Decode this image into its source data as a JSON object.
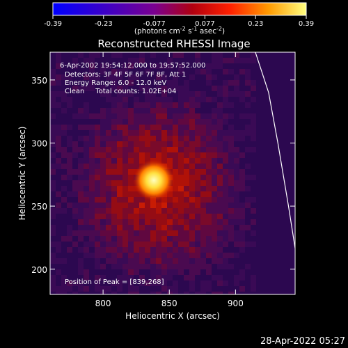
{
  "chart_data": {
    "type": "heatmap",
    "title": "Reconstructed RHESSI Image",
    "xlabel": "Heliocentric X (arcsec)",
    "ylabel": "Heliocentric Y (arcsec)",
    "xlim": [
      760,
      945
    ],
    "ylim": [
      180,
      372
    ],
    "x_ticks": [
      800,
      850,
      900
    ],
    "y_ticks": [
      200,
      250,
      300,
      350
    ],
    "colorbar": {
      "min": -0.39,
      "max": 0.39,
      "ticks": [
        "-0.39",
        "-0.23",
        "-0.077",
        "0.077",
        "0.23",
        "0.39"
      ],
      "unit_prefix": "(photons cm",
      "unit_exp1": "-2",
      "unit_mid1": " s",
      "unit_exp2": "-1",
      "unit_mid2": " asec",
      "unit_exp3": "-2",
      "unit_suffix": ")"
    },
    "peak": {
      "x": 839,
      "y": 268,
      "label": "Position of Peak = [839,268]"
    },
    "info_lines": [
      "6-Apr-2002 19:54:12.000 to 19:57:52.000",
      "Detectors: 3F 4F 5F 6F 7F 8F, Att 1",
      "Energy Range: 6.0 - 12.0 keV",
      "Clean     Total counts: 1.02E+04"
    ],
    "limb_curve": [
      [
        915,
        372
      ],
      [
        925,
        340
      ],
      [
        932,
        300
      ],
      [
        940,
        250
      ],
      [
        946,
        210
      ],
      [
        948,
        180
      ]
    ],
    "timestamp": "28-Apr-2022 05:27"
  }
}
